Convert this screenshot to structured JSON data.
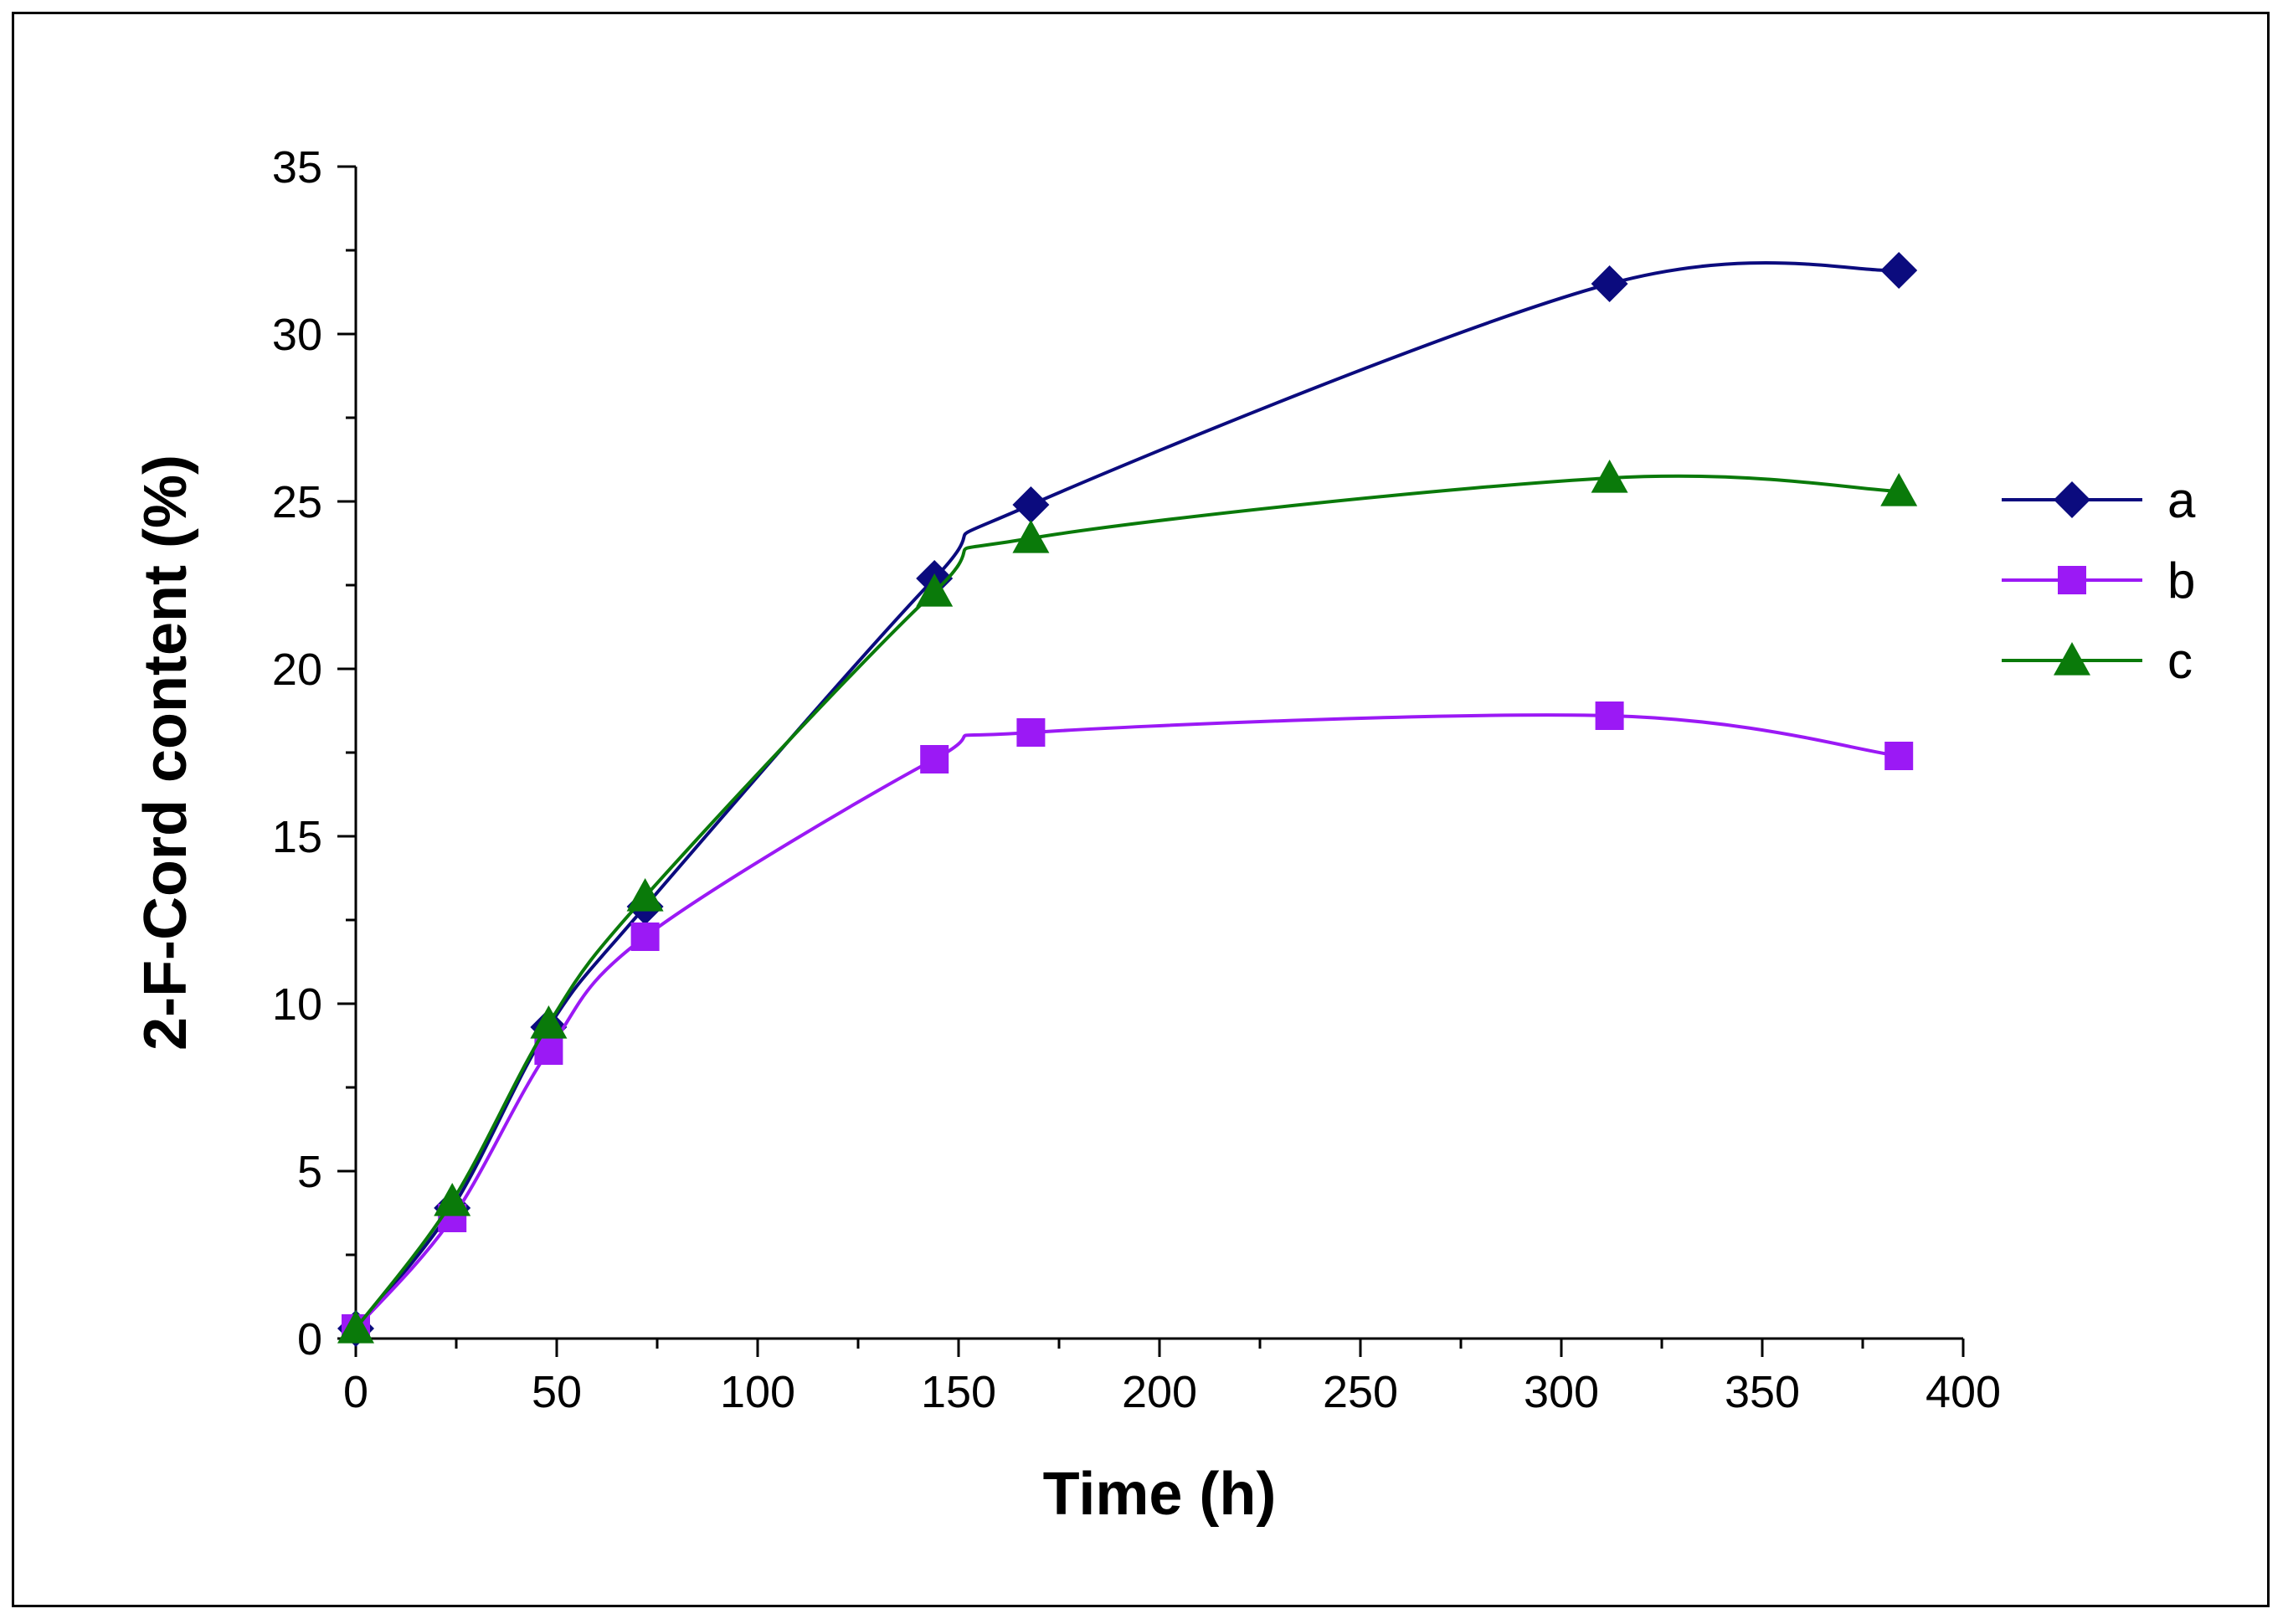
{
  "chart_data": {
    "type": "line",
    "title": "",
    "xlabel": "Time (h)",
    "ylabel": "2-F-Cord content (%)",
    "xlim": [
      0,
      400
    ],
    "ylim": [
      0,
      35
    ],
    "xticks": [
      0,
      50,
      100,
      150,
      200,
      250,
      300,
      350,
      400
    ],
    "yticks": [
      0,
      5,
      10,
      15,
      20,
      25,
      30,
      35
    ],
    "grid": false,
    "legend_position": "right",
    "series": [
      {
        "name": "a",
        "marker": "diamond",
        "color": "#0b0b7e",
        "x": [
          0,
          24,
          48,
          72,
          144,
          168,
          312,
          384
        ],
        "y": [
          0.3,
          3.9,
          9.3,
          12.9,
          22.7,
          24.9,
          31.5,
          31.9
        ]
      },
      {
        "name": "b",
        "marker": "square",
        "color": "#9b19f5",
        "x": [
          0,
          24,
          48,
          72,
          144,
          168,
          312,
          384
        ],
        "y": [
          0.3,
          3.6,
          8.6,
          12.0,
          17.3,
          18.1,
          18.6,
          17.4
        ]
      },
      {
        "name": "c",
        "marker": "triangle",
        "color": "#0a7a0a",
        "x": [
          0,
          24,
          48,
          72,
          144,
          168,
          312,
          384
        ],
        "y": [
          0.3,
          4.1,
          9.4,
          13.2,
          22.3,
          23.9,
          25.7,
          25.3
        ]
      }
    ]
  }
}
